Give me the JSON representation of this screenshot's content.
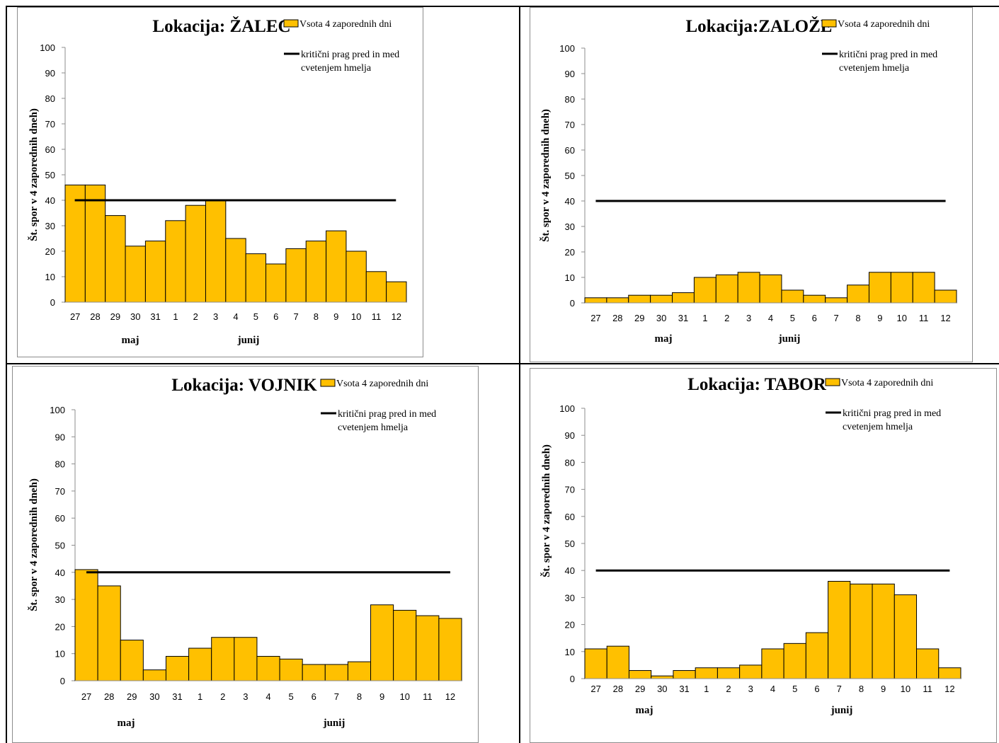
{
  "colors": {
    "bar_fill": "#FFC000",
    "bar_stroke": "#000000",
    "threshold": "#000000"
  },
  "chart_data": [
    {
      "type": "bar",
      "title": "Lokacija: ŽALEC",
      "ylabel": "Št. spor v 4 zaporednih dneh)",
      "categories": [
        "27",
        "28",
        "29",
        "30",
        "31",
        "1",
        "2",
        "3",
        "4",
        "5",
        "6",
        "7",
        "8",
        "9",
        "10",
        "11",
        "12"
      ],
      "month_labels": [
        "maj",
        "junij"
      ],
      "ylim": [
        0,
        100
      ],
      "yticks": [
        "0",
        "10",
        "20",
        "30",
        "40",
        "50",
        "60",
        "70",
        "80",
        "90",
        "100"
      ],
      "series": [
        {
          "name": "Vsota 4 zaporednih dni",
          "type": "bar",
          "values": [
            46,
            46,
            34,
            22,
            24,
            32,
            38,
            40,
            25,
            19,
            15,
            21,
            24,
            28,
            20,
            12,
            8
          ]
        },
        {
          "name": "kritični prag pred in med cvetenjem hmelja",
          "type": "line",
          "value": 40
        }
      ],
      "legend": {
        "bar_label": "Vsota 4 zaporednih dni",
        "line_label_1": "kritični prag pred in med",
        "line_label_2": "cvetenjem  hmelja"
      }
    },
    {
      "type": "bar",
      "title": "Lokacija:ZALOŽE",
      "ylabel": "Št. spor v 4 zaporednih dneh)",
      "categories": [
        "27",
        "28",
        "29",
        "30",
        "31",
        "1",
        "2",
        "3",
        "4",
        "5",
        "6",
        "7",
        "8",
        "9",
        "10",
        "11",
        "12"
      ],
      "month_labels": [
        "maj",
        "junij"
      ],
      "ylim": [
        0,
        100
      ],
      "yticks": [
        "0",
        "10",
        "20",
        "30",
        "40",
        "50",
        "60",
        "70",
        "80",
        "90",
        "100"
      ],
      "series": [
        {
          "name": "Vsota 4 zaporednih dni",
          "type": "bar",
          "values": [
            2,
            2,
            3,
            3,
            4,
            10,
            11,
            12,
            11,
            5,
            3,
            2,
            7,
            12,
            12,
            12,
            5
          ]
        },
        {
          "name": "kritični prag pred in med cvetenjem hmelja",
          "type": "line",
          "value": 40
        }
      ],
      "legend": {
        "bar_label": "Vsota 4 zaporednih dni",
        "line_label_1": "kritični prag pred in med",
        "line_label_2": "cvetenjem  hmelja"
      }
    },
    {
      "type": "bar",
      "title": "Lokacija: VOJNIK",
      "ylabel": "Št. spor v 4 zaporednih dneh)",
      "categories": [
        "27",
        "28",
        "29",
        "30",
        "31",
        "1",
        "2",
        "3",
        "4",
        "5",
        "6",
        "7",
        "8",
        "9",
        "10",
        "11",
        "12"
      ],
      "month_labels": [
        "maj",
        "junij"
      ],
      "ylim": [
        0,
        100
      ],
      "yticks": [
        "0",
        "10",
        "20",
        "30",
        "40",
        "50",
        "60",
        "70",
        "80",
        "90",
        "100"
      ],
      "series": [
        {
          "name": "Vsota 4 zaporednih dni",
          "type": "bar",
          "values": [
            41,
            35,
            15,
            4,
            9,
            12,
            16,
            16,
            9,
            8,
            6,
            6,
            7,
            28,
            26,
            24,
            23
          ]
        },
        {
          "name": "kritični prag pred in med cvetenjem hmelja",
          "type": "line",
          "value": 40
        }
      ],
      "legend": {
        "bar_label": "Vsota 4 zaporednih dni",
        "line_label_1": "kritični prag pred in med",
        "line_label_2": "cvetenjem  hmelja"
      }
    },
    {
      "type": "bar",
      "title": "Lokacija: TABOR",
      "ylabel": "Št. spor v 4 zaporednih dneh)",
      "categories": [
        "27",
        "28",
        "29",
        "30",
        "31",
        "1",
        "2",
        "3",
        "4",
        "5",
        "6",
        "7",
        "8",
        "9",
        "10",
        "11",
        "12"
      ],
      "month_labels": [
        "maj",
        "junij"
      ],
      "ylim": [
        0,
        100
      ],
      "yticks": [
        "0",
        "10",
        "20",
        "30",
        "40",
        "50",
        "60",
        "70",
        "80",
        "90",
        "100"
      ],
      "series": [
        {
          "name": "Vsota 4 zaporednih dni",
          "type": "bar",
          "values": [
            11,
            12,
            3,
            1,
            3,
            4,
            4,
            5,
            11,
            13,
            17,
            36,
            35,
            35,
            31,
            11,
            4
          ]
        },
        {
          "name": "kritični prag pred in med cvetenjem hmelja",
          "type": "line",
          "value": 40
        }
      ],
      "legend": {
        "bar_label": "Vsota 4 zaporednih dni",
        "line_label_1": "kritični prag pred in med",
        "line_label_2": "cvetenjem  hmelja"
      }
    }
  ]
}
